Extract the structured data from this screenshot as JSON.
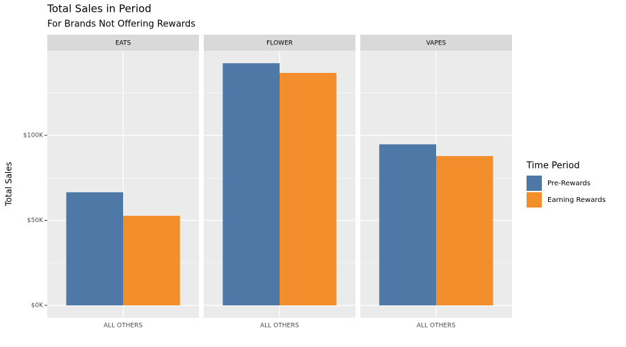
{
  "chart_data": {
    "type": "bar",
    "title": "Total Sales in Period",
    "subtitle": "For Brands Not Offering Rewards",
    "y_label": "Total Sales",
    "legend_title": "Time Period",
    "legend_position": "right",
    "facets": [
      "EATS",
      "FLOWER",
      "VAPES"
    ],
    "categories": [
      "ALL OTHERS",
      "ALL OTHERS",
      "ALL OTHERS"
    ],
    "series": [
      {
        "name": "Pre-Rewards",
        "color": "#4e79a7",
        "values": [
          66500,
          142400,
          94700
        ]
      },
      {
        "name": "Earning Rewards",
        "color": "#f28e2b",
        "values": [
          52700,
          136700,
          87800
        ]
      }
    ],
    "ylim": [
      -7347,
      149796
    ],
    "yticks": [
      {
        "value": 0,
        "label": "$0K"
      },
      {
        "value": 50000,
        "label": "$50K"
      },
      {
        "value": 100000,
        "label": "$100K"
      }
    ],
    "minor_yticks": [
      25000,
      75000,
      125000
    ],
    "grid": true
  }
}
